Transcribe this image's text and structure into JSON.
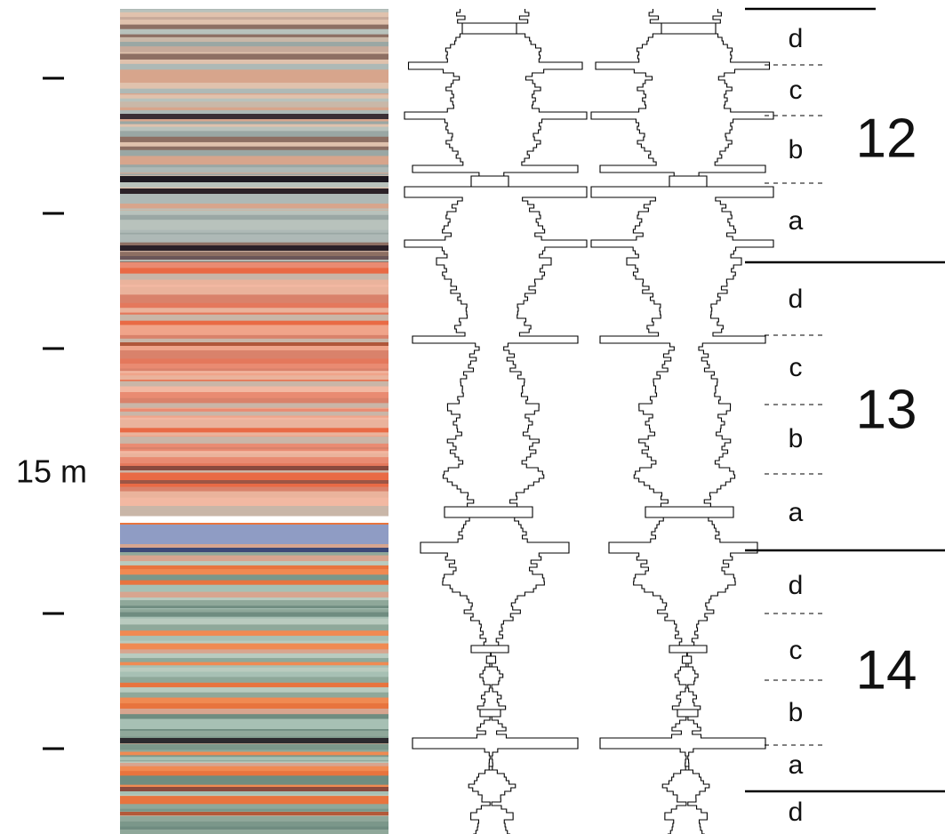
{
  "depth_label": "15 m",
  "units": [
    {
      "label": "12",
      "subunits": [
        "d",
        "c",
        "b",
        "a"
      ]
    },
    {
      "label": "13",
      "subunits": [
        "d",
        "c",
        "b",
        "a"
      ]
    },
    {
      "label": "14",
      "subunits": [
        "d",
        "c",
        "b",
        "a"
      ]
    }
  ],
  "trailing_subunit": "d"
}
